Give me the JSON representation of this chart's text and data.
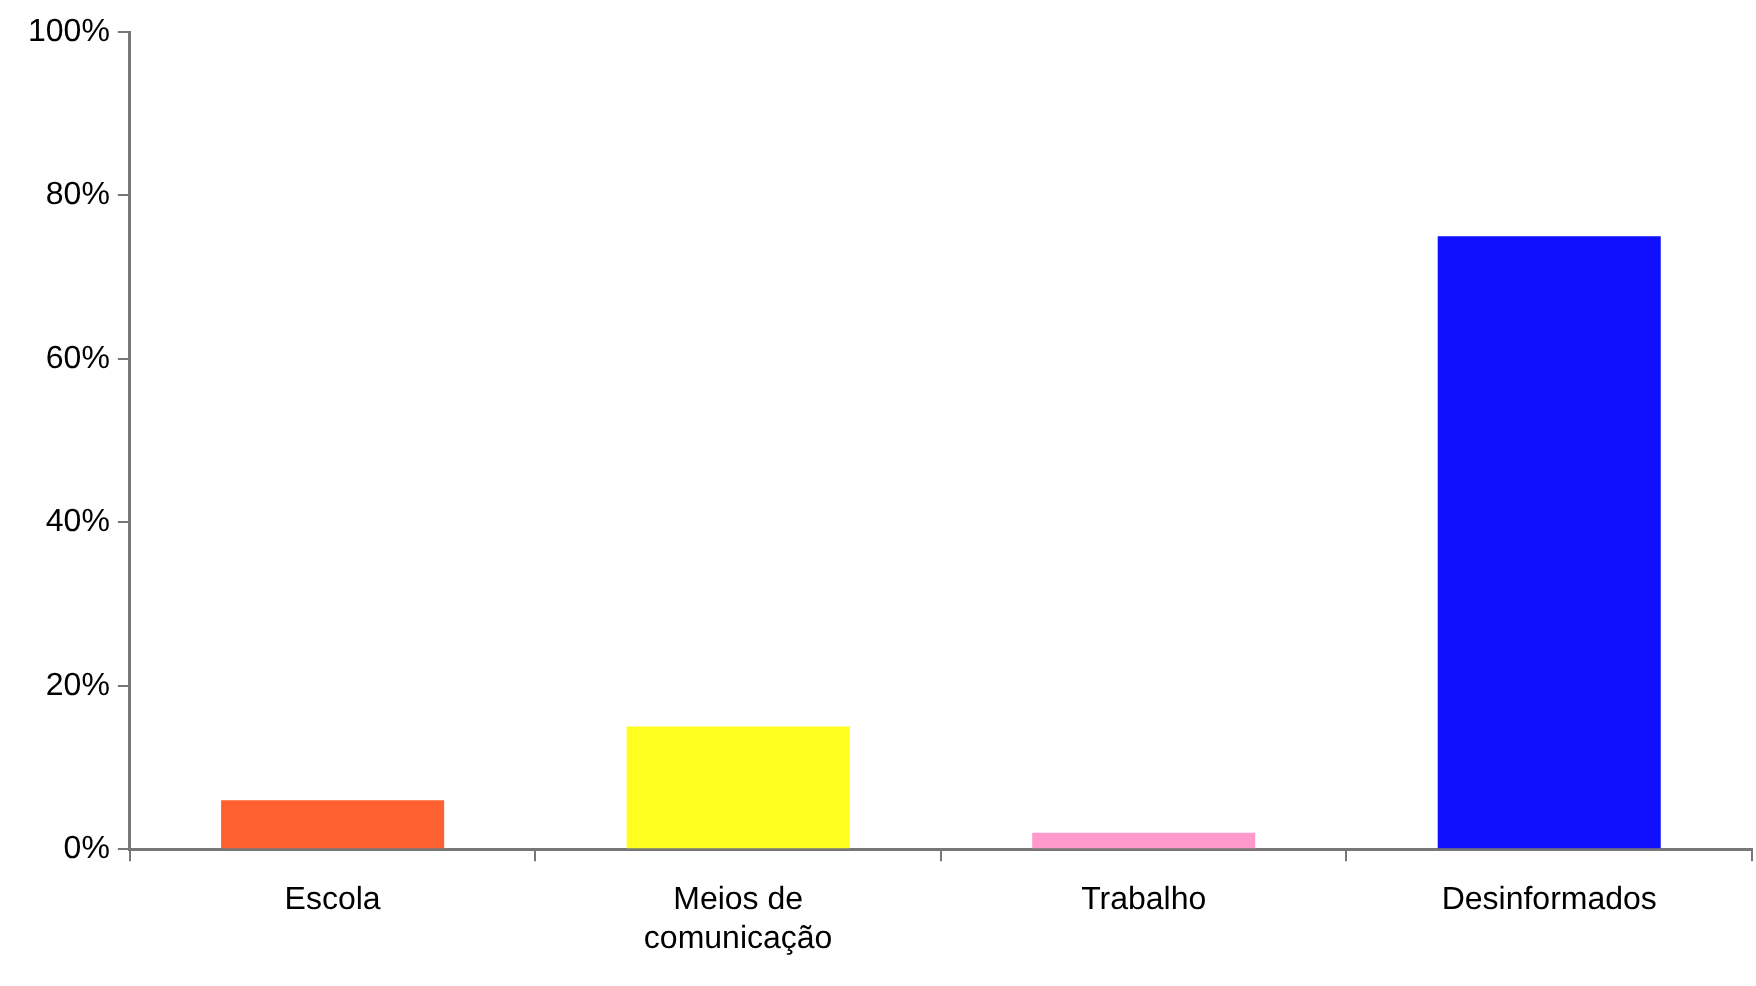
{
  "chart_data": {
    "type": "bar",
    "categories": [
      "Escola",
      "Meios de comunicação",
      "Trabalho",
      "Desinformados"
    ],
    "values": [
      6,
      15,
      2,
      75
    ],
    "colors": [
      "#ff6030",
      "#ffff20",
      "#ff99cc",
      "#1010ff"
    ],
    "ylim": [
      0,
      100
    ],
    "yticks": [
      {
        "value": 0,
        "label": "0%"
      },
      {
        "value": 20,
        "label": "20%"
      },
      {
        "value": 40,
        "label": "40%"
      },
      {
        "value": 60,
        "label": "60%"
      },
      {
        "value": 80,
        "label": "80%"
      },
      {
        "value": 100,
        "label": "100%"
      }
    ],
    "grid": false,
    "legend": false
  }
}
